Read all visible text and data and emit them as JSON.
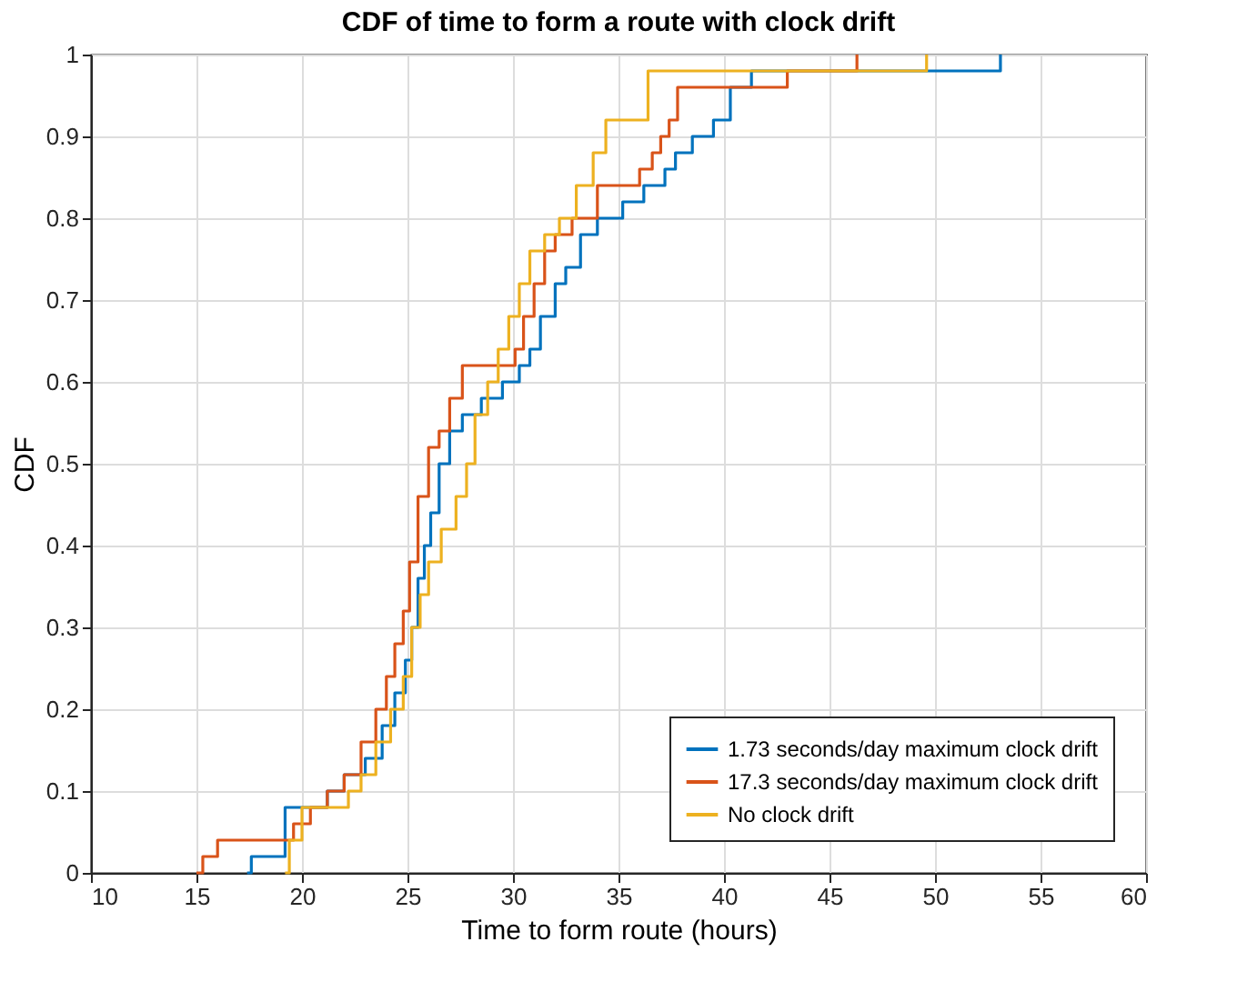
{
  "chart_data": {
    "type": "step",
    "title": "CDF of time to form a route with clock drift",
    "xlabel": "Time to form route (hours)",
    "ylabel": "CDF",
    "xlim": [
      10,
      60
    ],
    "xticks": [
      10,
      15,
      20,
      25,
      30,
      35,
      40,
      45,
      50,
      55,
      60
    ],
    "ylim": [
      0,
      1
    ],
    "yticks": [
      0,
      0.1,
      0.2,
      0.3,
      0.4,
      0.5,
      0.6,
      0.7,
      0.8,
      0.9,
      1
    ],
    "grid": true,
    "legend": "bottom right",
    "line_style": "solid",
    "marker": "none",
    "series": [
      {
        "name": "1.73 seconds/day maximum clock drift",
        "color": "#0072bd",
        "x": [
          17.4,
          17.6,
          19.2,
          21.2,
          22,
          23,
          23.8,
          24.4,
          24.9,
          25.2,
          25.5,
          25.8,
          26.1,
          26.5,
          27,
          27.6,
          28.5,
          29.5,
          30.3,
          30.8,
          31.3,
          32,
          32.5,
          33.2,
          34,
          35.2,
          36.2,
          37.2,
          37.7,
          38.5,
          39.5,
          40.3,
          41.3,
          53.1
        ],
        "values": [
          0,
          0.02,
          0.08,
          0.1,
          0.12,
          0.14,
          0.18,
          0.22,
          0.26,
          0.3,
          0.36,
          0.4,
          0.44,
          0.5,
          0.54,
          0.56,
          0.58,
          0.6,
          0.62,
          0.64,
          0.68,
          0.72,
          0.74,
          0.78,
          0.8,
          0.82,
          0.84,
          0.86,
          0.88,
          0.9,
          0.92,
          0.96,
          0.98,
          1
        ]
      },
      {
        "name": "17.3 seconds/day maximum clock drift",
        "color": "#d95319",
        "x": [
          15,
          15.3,
          16,
          19.6,
          20.4,
          21.2,
          22,
          22.8,
          23.5,
          24,
          24.4,
          24.8,
          25.1,
          25.5,
          26,
          26.5,
          27,
          27.6,
          28.5,
          30.1,
          30.5,
          31,
          31.5,
          32,
          32.8,
          34,
          36,
          36.6,
          37,
          37.4,
          37.8,
          43,
          46.3
        ],
        "values": [
          0,
          0.02,
          0.04,
          0.06,
          0.08,
          0.1,
          0.12,
          0.16,
          0.2,
          0.24,
          0.28,
          0.32,
          0.38,
          0.46,
          0.52,
          0.54,
          0.58,
          0.62,
          0.62,
          0.64,
          0.68,
          0.72,
          0.76,
          0.78,
          0.8,
          0.84,
          0.86,
          0.88,
          0.9,
          0.92,
          0.96,
          0.98,
          1
        ]
      },
      {
        "name": "No clock drift",
        "color": "#edb120",
        "x": [
          19.2,
          19.4,
          20,
          22.2,
          22.8,
          23.5,
          24.2,
          24.8,
          25.2,
          25.6,
          26,
          26.6,
          27.3,
          27.8,
          28.2,
          28.8,
          29.3,
          29.8,
          30.3,
          30.8,
          31.5,
          32.2,
          33,
          33.8,
          34.4,
          36.4,
          49.6
        ],
        "values": [
          0,
          0.04,
          0.08,
          0.1,
          0.12,
          0.16,
          0.2,
          0.24,
          0.3,
          0.34,
          0.38,
          0.42,
          0.46,
          0.5,
          0.56,
          0.6,
          0.64,
          0.68,
          0.72,
          0.76,
          0.78,
          0.8,
          0.84,
          0.88,
          0.92,
          0.98,
          1
        ]
      }
    ]
  }
}
